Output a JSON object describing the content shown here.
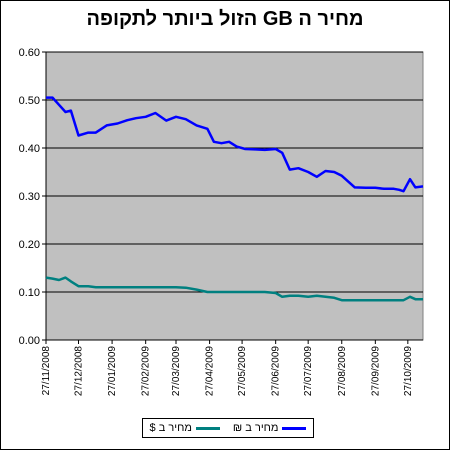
{
  "chart_data": {
    "type": "line",
    "title": "מחיר ה GB הזול ביותר לתקופה",
    "xlabel": "",
    "ylabel": "",
    "ylim": [
      0,
      0.6
    ],
    "y_ticks": [
      "0.00",
      "0.10",
      "0.20",
      "0.30",
      "0.40",
      "0.50",
      "0.60"
    ],
    "x_ticks": [
      "27/11/2008",
      "27/12/2008",
      "27/01/2009",
      "27/02/2009",
      "27/03/2009",
      "27/04/2009",
      "27/05/2009",
      "27/06/2009",
      "27/07/2009",
      "27/08/2009",
      "27/09/2009",
      "27/10/2009"
    ],
    "grid": "horizontal",
    "legend_position": "bottom",
    "background_color": "#c0c0c0",
    "x": [
      "2008-11-27",
      "2008-12-03",
      "2008-12-09",
      "2008-12-15",
      "2008-12-20",
      "2008-12-27",
      "2009-01-05",
      "2009-01-12",
      "2009-01-22",
      "2009-02-01",
      "2009-02-10",
      "2009-02-18",
      "2009-02-27",
      "2009-03-08",
      "2009-03-18",
      "2009-03-27",
      "2009-04-05",
      "2009-04-15",
      "2009-04-25",
      "2009-05-01",
      "2009-05-08",
      "2009-05-15",
      "2009-05-22",
      "2009-05-30",
      "2009-06-08",
      "2009-06-17",
      "2009-06-27",
      "2009-07-03",
      "2009-07-10",
      "2009-07-18",
      "2009-07-27",
      "2009-08-04",
      "2009-08-12",
      "2009-08-20",
      "2009-08-27",
      "2009-09-08",
      "2009-09-18",
      "2009-09-27",
      "2009-10-05",
      "2009-10-14",
      "2009-10-19",
      "2009-10-23",
      "2009-10-29",
      "2009-11-03",
      "2009-11-10"
    ],
    "series": [
      {
        "name": "מחיר ב ₪",
        "color": "#0000ff",
        "values": [
          0.505,
          0.505,
          0.49,
          0.475,
          0.478,
          0.426,
          0.432,
          0.432,
          0.447,
          0.451,
          0.458,
          0.462,
          0.465,
          0.473,
          0.457,
          0.465,
          0.46,
          0.447,
          0.44,
          0.413,
          0.41,
          0.413,
          0.403,
          0.398,
          0.397,
          0.396,
          0.398,
          0.39,
          0.355,
          0.358,
          0.35,
          0.34,
          0.352,
          0.35,
          0.342,
          0.318,
          0.317,
          0.317,
          0.315,
          0.315,
          0.313,
          0.31,
          0.335,
          0.318,
          0.32
        ]
      },
      {
        "name": "מחיר ב $",
        "color": "#008080",
        "values": [
          0.13,
          0.128,
          0.125,
          0.13,
          0.122,
          0.112,
          0.112,
          0.11,
          0.11,
          0.11,
          0.11,
          0.11,
          0.11,
          0.11,
          0.11,
          0.11,
          0.109,
          0.105,
          0.1,
          0.1,
          0.1,
          0.1,
          0.1,
          0.1,
          0.1,
          0.1,
          0.098,
          0.09,
          0.092,
          0.092,
          0.09,
          0.092,
          0.09,
          0.088,
          0.083,
          0.083,
          0.083,
          0.083,
          0.083,
          0.083,
          0.083,
          0.083,
          0.09,
          0.085,
          0.085
        ]
      }
    ]
  }
}
